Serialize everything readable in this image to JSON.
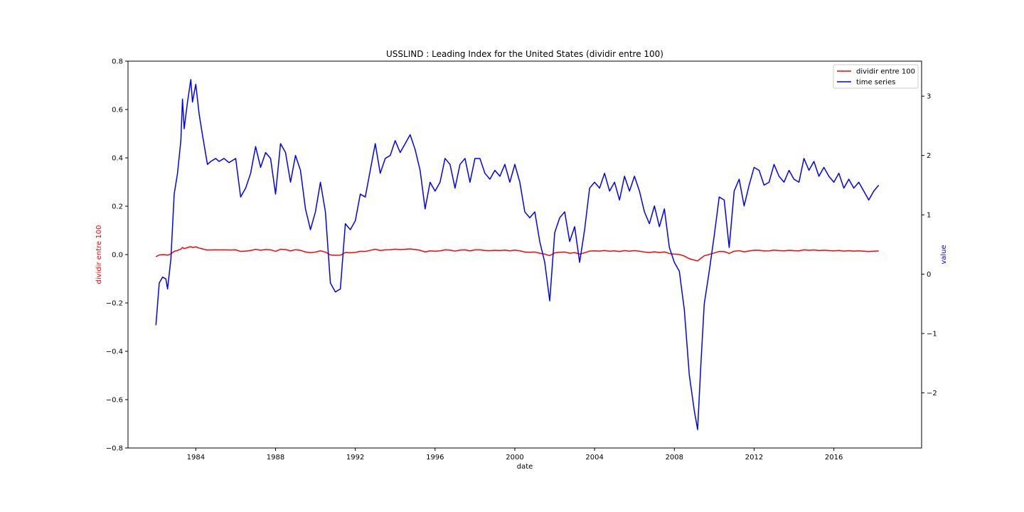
{
  "chart_data": {
    "type": "line",
    "title": "USSLIND :  Leading Index for the United States (dividir entre 100)",
    "xlabel": "date",
    "ylabel_left": "dividir entre 100",
    "ylabel_right": "value",
    "x_ticks": [
      "1984",
      "1988",
      "1992",
      "1996",
      "2000",
      "2004",
      "2008",
      "2012",
      "2016"
    ],
    "x_tick_years": [
      1984,
      1988,
      1992,
      1996,
      2000,
      2004,
      2008,
      2012,
      2016
    ],
    "xlim": [
      1980.6,
      2020.4
    ],
    "ylim_left": [
      -0.8,
      0.8
    ],
    "y_ticks_left": [
      "0.8",
      "0.6",
      "0.4",
      "0.2",
      "0.0",
      "−0.2",
      "−0.4",
      "−0.6",
      "−0.8"
    ],
    "y_tick_values_left": [
      0.8,
      0.6,
      0.4,
      0.2,
      0.0,
      -0.2,
      -0.4,
      -0.6,
      -0.8
    ],
    "ylim_right": [
      -2.93,
      3.59
    ],
    "y_ticks_right": [
      "3",
      "2",
      "1",
      "0",
      "−1",
      "−2"
    ],
    "y_tick_values_right": [
      3,
      2,
      1,
      0,
      -1,
      -2
    ],
    "legend_position": "top-right",
    "grid": false,
    "series": [
      {
        "name": "dividir entre 100",
        "axis": "left",
        "color": "#ff0000",
        "derived_from": "time series",
        "scale": 0.01
      },
      {
        "name": "time series",
        "axis": "right",
        "color": "#0000ff",
        "points": [
          [
            "1982-01",
            -0.86
          ],
          [
            "1982-03",
            -0.15
          ],
          [
            "1982-05",
            -0.05
          ],
          [
            "1982-07",
            -0.08
          ],
          [
            "1982-08",
            -0.25
          ],
          [
            "1982-10",
            0.25
          ],
          [
            "1982-12",
            1.35
          ],
          [
            "1983-02",
            1.7
          ],
          [
            "1983-04",
            2.25
          ],
          [
            "1983-05",
            2.95
          ],
          [
            "1983-06",
            2.45
          ],
          [
            "1983-08",
            2.9
          ],
          [
            "1983-10",
            3.28
          ],
          [
            "1983-11",
            2.9
          ],
          [
            "1984-01",
            3.2
          ],
          [
            "1984-03",
            2.7
          ],
          [
            "1984-05",
            2.35
          ],
          [
            "1984-08",
            1.85
          ],
          [
            "1984-10",
            1.9
          ],
          [
            "1985-01",
            1.95
          ],
          [
            "1985-03",
            1.9
          ],
          [
            "1985-06",
            1.95
          ],
          [
            "1985-09",
            1.88
          ],
          [
            "1986-01",
            1.95
          ],
          [
            "1986-04",
            1.3
          ],
          [
            "1986-07",
            1.45
          ],
          [
            "1986-10",
            1.7
          ],
          [
            "1987-01",
            2.15
          ],
          [
            "1987-04",
            1.8
          ],
          [
            "1987-07",
            2.05
          ],
          [
            "1987-10",
            1.95
          ],
          [
            "1988-01",
            1.35
          ],
          [
            "1988-04",
            2.2
          ],
          [
            "1988-07",
            2.05
          ],
          [
            "1988-10",
            1.55
          ],
          [
            "1989-01",
            2.0
          ],
          [
            "1989-04",
            1.75
          ],
          [
            "1989-07",
            1.1
          ],
          [
            "1989-10",
            0.75
          ],
          [
            "1990-01",
            1.05
          ],
          [
            "1990-04",
            1.55
          ],
          [
            "1990-07",
            1.05
          ],
          [
            "1990-10",
            -0.15
          ],
          [
            "1991-01",
            -0.3
          ],
          [
            "1991-04",
            -0.25
          ],
          [
            "1991-07",
            0.85
          ],
          [
            "1991-10",
            0.75
          ],
          [
            "1992-01",
            0.9
          ],
          [
            "1992-04",
            1.35
          ],
          [
            "1992-07",
            1.3
          ],
          [
            "1992-10",
            1.75
          ],
          [
            "1993-01",
            2.2
          ],
          [
            "1993-04",
            1.7
          ],
          [
            "1993-07",
            1.95
          ],
          [
            "1993-10",
            2.0
          ],
          [
            "1994-01",
            2.25
          ],
          [
            "1994-04",
            2.05
          ],
          [
            "1994-07",
            2.2
          ],
          [
            "1994-10",
            2.35
          ],
          [
            "1995-01",
            2.1
          ],
          [
            "1995-04",
            1.75
          ],
          [
            "1995-07",
            1.1
          ],
          [
            "1995-10",
            1.55
          ],
          [
            "1996-01",
            1.4
          ],
          [
            "1996-04",
            1.55
          ],
          [
            "1996-07",
            1.95
          ],
          [
            "1996-10",
            1.85
          ],
          [
            "1997-01",
            1.45
          ],
          [
            "1997-04",
            1.85
          ],
          [
            "1997-07",
            1.95
          ],
          [
            "1997-10",
            1.55
          ],
          [
            "1998-01",
            1.95
          ],
          [
            "1998-04",
            1.95
          ],
          [
            "1998-07",
            1.7
          ],
          [
            "1998-10",
            1.6
          ],
          [
            "1999-01",
            1.75
          ],
          [
            "1999-04",
            1.65
          ],
          [
            "1999-07",
            1.85
          ],
          [
            "1999-10",
            1.55
          ],
          [
            "2000-01",
            1.85
          ],
          [
            "2000-04",
            1.55
          ],
          [
            "2000-07",
            1.05
          ],
          [
            "2000-10",
            0.95
          ],
          [
            "2001-01",
            1.05
          ],
          [
            "2001-04",
            0.55
          ],
          [
            "2001-07",
            0.2
          ],
          [
            "2001-10",
            -0.45
          ],
          [
            "2002-01",
            0.7
          ],
          [
            "2002-04",
            0.95
          ],
          [
            "2002-07",
            1.05
          ],
          [
            "2002-10",
            0.55
          ],
          [
            "2003-01",
            0.8
          ],
          [
            "2003-04",
            0.2
          ],
          [
            "2003-07",
            0.75
          ],
          [
            "2003-10",
            1.45
          ],
          [
            "2004-01",
            1.55
          ],
          [
            "2004-04",
            1.45
          ],
          [
            "2004-07",
            1.7
          ],
          [
            "2004-10",
            1.4
          ],
          [
            "2005-01",
            1.55
          ],
          [
            "2005-04",
            1.25
          ],
          [
            "2005-07",
            1.65
          ],
          [
            "2005-10",
            1.4
          ],
          [
            "2006-01",
            1.65
          ],
          [
            "2006-04",
            1.4
          ],
          [
            "2006-07",
            1.05
          ],
          [
            "2006-10",
            0.85
          ],
          [
            "2007-01",
            1.15
          ],
          [
            "2007-04",
            0.8
          ],
          [
            "2007-07",
            1.1
          ],
          [
            "2007-10",
            0.45
          ],
          [
            "2008-01",
            0.2
          ],
          [
            "2008-04",
            0.05
          ],
          [
            "2008-07",
            -0.6
          ],
          [
            "2008-10",
            -1.7
          ],
          [
            "2009-01",
            -2.3
          ],
          [
            "2009-03",
            -2.62
          ],
          [
            "2009-05",
            -1.5
          ],
          [
            "2009-07",
            -0.5
          ],
          [
            "2009-10",
            0.05
          ],
          [
            "2010-01",
            0.65
          ],
          [
            "2010-04",
            1.3
          ],
          [
            "2010-07",
            1.25
          ],
          [
            "2010-10",
            0.45
          ],
          [
            "2011-01",
            1.4
          ],
          [
            "2011-04",
            1.6
          ],
          [
            "2011-07",
            1.15
          ],
          [
            "2011-10",
            1.5
          ],
          [
            "2012-01",
            1.8
          ],
          [
            "2012-04",
            1.75
          ],
          [
            "2012-07",
            1.5
          ],
          [
            "2012-10",
            1.55
          ],
          [
            "2013-01",
            1.85
          ],
          [
            "2013-04",
            1.65
          ],
          [
            "2013-07",
            1.55
          ],
          [
            "2013-10",
            1.75
          ],
          [
            "2014-01",
            1.6
          ],
          [
            "2014-04",
            1.55
          ],
          [
            "2014-07",
            1.95
          ],
          [
            "2014-10",
            1.75
          ],
          [
            "2015-01",
            1.9
          ],
          [
            "2015-04",
            1.65
          ],
          [
            "2015-07",
            1.8
          ],
          [
            "2015-10",
            1.65
          ],
          [
            "2016-01",
            1.55
          ],
          [
            "2016-04",
            1.7
          ],
          [
            "2016-07",
            1.45
          ],
          [
            "2016-10",
            1.6
          ],
          [
            "2017-01",
            1.45
          ],
          [
            "2017-04",
            1.55
          ],
          [
            "2017-07",
            1.4
          ],
          [
            "2017-10",
            1.25
          ],
          [
            "2018-01",
            1.4
          ],
          [
            "2018-04",
            1.5
          ]
        ]
      }
    ]
  }
}
